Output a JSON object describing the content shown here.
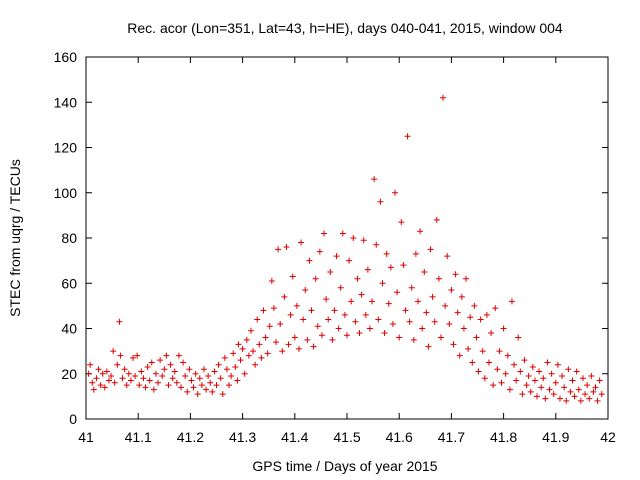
{
  "chart_data": {
    "type": "scatter",
    "title": "Rec. acor (Lon=351, Lat=43, h=HE), days 040-041, 2015, window 004",
    "xlabel": "GPS time / Days of year 2015",
    "ylabel": "STEC from uqrg / TECUs",
    "xlim": [
      41,
      42
    ],
    "ylim": [
      0,
      160
    ],
    "xticks": [
      41,
      41.1,
      41.2,
      41.3,
      41.4,
      41.5,
      41.6,
      41.7,
      41.8,
      41.9,
      42
    ],
    "xtick_labels": [
      "41",
      "41.1",
      "41.2",
      "41.3",
      "41.4",
      "41.5",
      "41.6",
      "41.7",
      "41.8",
      "41.9",
      "42"
    ],
    "yticks": [
      0,
      20,
      40,
      60,
      80,
      100,
      120,
      140,
      160
    ],
    "ytick_labels": [
      "0",
      "20",
      "40",
      "60",
      "80",
      "100",
      "120",
      "140",
      "160"
    ],
    "marker": "+",
    "marker_color": "#dd0000",
    "grid": false,
    "legend": "none",
    "series": [
      {
        "name": "STEC",
        "points": [
          [
            41.005,
            20
          ],
          [
            41.008,
            24
          ],
          [
            41.012,
            16
          ],
          [
            41.015,
            13
          ],
          [
            41.02,
            18
          ],
          [
            41.024,
            22
          ],
          [
            41.028,
            15
          ],
          [
            41.032,
            20
          ],
          [
            41.036,
            14
          ],
          [
            41.04,
            21
          ],
          [
            41.044,
            17
          ],
          [
            41.048,
            19
          ],
          [
            41.052,
            30
          ],
          [
            41.055,
            16
          ],
          [
            41.06,
            24
          ],
          [
            41.064,
            43
          ],
          [
            41.066,
            28
          ],
          [
            41.07,
            18
          ],
          [
            41.074,
            22
          ],
          [
            41.078,
            15
          ],
          [
            41.082,
            20
          ],
          [
            41.086,
            17
          ],
          [
            41.09,
            27
          ],
          [
            41.094,
            19
          ],
          [
            41.098,
            28
          ],
          [
            41.102,
            15
          ],
          [
            41.106,
            21
          ],
          [
            41.11,
            18
          ],
          [
            41.114,
            14
          ],
          [
            41.118,
            23
          ],
          [
            41.122,
            17
          ],
          [
            41.126,
            25
          ],
          [
            41.13,
            13
          ],
          [
            41.134,
            20
          ],
          [
            41.138,
            16
          ],
          [
            41.142,
            26
          ],
          [
            41.146,
            19
          ],
          [
            41.15,
            22
          ],
          [
            41.154,
            28
          ],
          [
            41.158,
            15
          ],
          [
            41.162,
            24
          ],
          [
            41.166,
            18
          ],
          [
            41.17,
            21
          ],
          [
            41.174,
            16
          ],
          [
            41.178,
            28
          ],
          [
            41.182,
            14
          ],
          [
            41.186,
            25
          ],
          [
            41.19,
            19
          ],
          [
            41.194,
            12
          ],
          [
            41.198,
            22
          ],
          [
            41.202,
            17
          ],
          [
            41.206,
            14
          ],
          [
            41.21,
            20
          ],
          [
            41.214,
            11
          ],
          [
            41.218,
            18
          ],
          [
            41.222,
            15
          ],
          [
            41.226,
            22
          ],
          [
            41.23,
            13
          ],
          [
            41.234,
            19
          ],
          [
            41.238,
            16
          ],
          [
            41.242,
            12
          ],
          [
            41.246,
            21
          ],
          [
            41.25,
            15
          ],
          [
            41.254,
            24
          ],
          [
            41.258,
            18
          ],
          [
            41.262,
            11
          ],
          [
            41.266,
            27
          ],
          [
            41.27,
            22
          ],
          [
            41.274,
            15
          ],
          [
            41.278,
            19
          ],
          [
            41.282,
            29
          ],
          [
            41.286,
            23
          ],
          [
            41.29,
            17
          ],
          [
            41.292,
            33
          ],
          [
            41.296,
            26
          ],
          [
            41.3,
            31
          ],
          [
            41.304,
            20
          ],
          [
            41.308,
            35
          ],
          [
            41.312,
            28
          ],
          [
            41.316,
            39
          ],
          [
            41.32,
            30
          ],
          [
            41.324,
            24
          ],
          [
            41.328,
            44
          ],
          [
            41.332,
            33
          ],
          [
            41.336,
            27
          ],
          [
            41.34,
            48
          ],
          [
            41.344,
            36
          ],
          [
            41.348,
            29
          ],
          [
            41.352,
            41
          ],
          [
            41.356,
            61
          ],
          [
            41.36,
            49
          ],
          [
            41.364,
            34
          ],
          [
            41.368,
            75
          ],
          [
            41.372,
            42
          ],
          [
            41.376,
            30
          ],
          [
            41.38,
            54
          ],
          [
            41.384,
            76
          ],
          [
            41.388,
            33
          ],
          [
            41.392,
            46
          ],
          [
            41.396,
            63
          ],
          [
            41.4,
            36
          ],
          [
            41.404,
            50
          ],
          [
            41.408,
            31
          ],
          [
            41.412,
            78
          ],
          [
            41.416,
            44
          ],
          [
            41.42,
            57
          ],
          [
            41.424,
            35
          ],
          [
            41.428,
            70
          ],
          [
            41.432,
            48
          ],
          [
            41.436,
            32
          ],
          [
            41.44,
            62
          ],
          [
            41.444,
            41
          ],
          [
            41.448,
            74
          ],
          [
            41.452,
            37
          ],
          [
            41.456,
            82
          ],
          [
            41.46,
            53
          ],
          [
            41.464,
            44
          ],
          [
            41.468,
            65
          ],
          [
            41.472,
            35
          ],
          [
            41.476,
            48
          ],
          [
            41.48,
            72
          ],
          [
            41.484,
            40
          ],
          [
            41.488,
            58
          ],
          [
            41.492,
            82
          ],
          [
            41.496,
            46
          ],
          [
            41.5,
            37
          ],
          [
            41.504,
            70
          ],
          [
            41.508,
            52
          ],
          [
            41.512,
            80
          ],
          [
            41.516,
            43
          ],
          [
            41.52,
            62
          ],
          [
            41.524,
            38
          ],
          [
            41.528,
            55
          ],
          [
            41.532,
            79
          ],
          [
            41.536,
            46
          ],
          [
            41.54,
            66
          ],
          [
            41.544,
            40
          ],
          [
            41.548,
            52
          ],
          [
            41.552,
            106
          ],
          [
            41.556,
            77
          ],
          [
            41.56,
            44
          ],
          [
            41.564,
            96
          ],
          [
            41.568,
            60
          ],
          [
            41.572,
            38
          ],
          [
            41.576,
            73
          ],
          [
            41.58,
            51
          ],
          [
            41.584,
            67
          ],
          [
            41.588,
            42
          ],
          [
            41.592,
            100
          ],
          [
            41.596,
            56
          ],
          [
            41.6,
            36
          ],
          [
            41.604,
            87
          ],
          [
            41.608,
            68
          ],
          [
            41.612,
            48
          ],
          [
            41.616,
            125
          ],
          [
            41.62,
            43
          ],
          [
            41.624,
            58
          ],
          [
            41.628,
            35
          ],
          [
            41.632,
            73
          ],
          [
            41.636,
            52
          ],
          [
            41.64,
            83
          ],
          [
            41.644,
            40
          ],
          [
            41.648,
            65
          ],
          [
            41.652,
            47
          ],
          [
            41.656,
            32
          ],
          [
            41.66,
            75
          ],
          [
            41.664,
            54
          ],
          [
            41.668,
            43
          ],
          [
            41.672,
            88
          ],
          [
            41.676,
            62
          ],
          [
            41.68,
            36
          ],
          [
            41.684,
            142
          ],
          [
            41.688,
            50
          ],
          [
            41.692,
            72
          ],
          [
            41.696,
            42
          ],
          [
            41.7,
            57
          ],
          [
            41.704,
            33
          ],
          [
            41.708,
            64
          ],
          [
            41.712,
            47
          ],
          [
            41.716,
            28
          ],
          [
            41.72,
            54
          ],
          [
            41.724,
            40
          ],
          [
            41.728,
            62
          ],
          [
            41.732,
            31
          ],
          [
            41.736,
            45
          ],
          [
            41.74,
            25
          ],
          [
            41.744,
            50
          ],
          [
            41.748,
            36
          ],
          [
            41.752,
            21
          ],
          [
            41.756,
            44
          ],
          [
            41.76,
            30
          ],
          [
            41.764,
            18
          ],
          [
            41.768,
            46
          ],
          [
            41.772,
            25
          ],
          [
            41.776,
            38
          ],
          [
            41.78,
            15
          ],
          [
            41.784,
            49
          ],
          [
            41.788,
            22
          ],
          [
            41.792,
            30
          ],
          [
            41.796,
            16
          ],
          [
            41.8,
            40
          ],
          [
            41.804,
            20
          ],
          [
            41.808,
            28
          ],
          [
            41.812,
            13
          ],
          [
            41.816,
            52
          ],
          [
            41.82,
            24
          ],
          [
            41.824,
            17
          ],
          [
            41.828,
            36
          ],
          [
            41.832,
            21
          ],
          [
            41.836,
            11
          ],
          [
            41.84,
            26
          ],
          [
            41.844,
            15
          ],
          [
            41.848,
            19
          ],
          [
            41.852,
            12
          ],
          [
            41.856,
            23
          ],
          [
            41.86,
            17
          ],
          [
            41.864,
            10
          ],
          [
            41.868,
            21
          ],
          [
            41.872,
            14
          ],
          [
            41.876,
            18
          ],
          [
            41.88,
            9
          ],
          [
            41.884,
            25
          ],
          [
            41.888,
            13
          ],
          [
            41.892,
            20
          ],
          [
            41.896,
            11
          ],
          [
            41.9,
            16
          ],
          [
            41.904,
            24
          ],
          [
            41.908,
            9
          ],
          [
            41.912,
            19
          ],
          [
            41.916,
            14
          ],
          [
            41.92,
            8
          ],
          [
            41.924,
            22
          ],
          [
            41.928,
            12
          ],
          [
            41.932,
            17
          ],
          [
            41.936,
            10
          ],
          [
            41.94,
            21
          ],
          [
            41.944,
            13
          ],
          [
            41.948,
            8
          ],
          [
            41.952,
            18
          ],
          [
            41.956,
            11
          ],
          [
            41.96,
            15
          ],
          [
            41.964,
            9
          ],
          [
            41.968,
            19
          ],
          [
            41.972,
            12
          ],
          [
            41.976,
            14
          ],
          [
            41.98,
            8
          ],
          [
            41.984,
            17
          ],
          [
            41.988,
            11
          ]
        ]
      }
    ]
  }
}
